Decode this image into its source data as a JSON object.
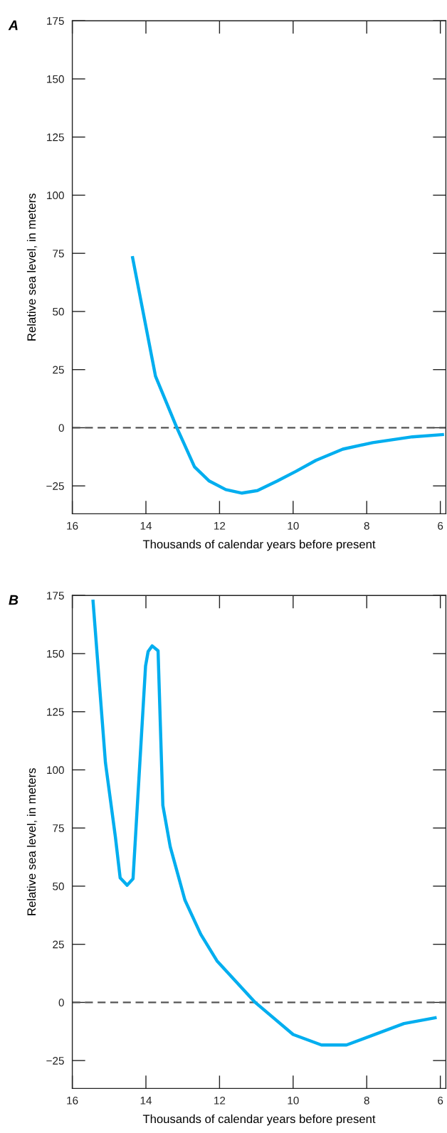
{
  "chart_data": [
    {
      "type": "line",
      "title": "A",
      "xlabel": "Thousands of calendar years before present",
      "ylabel": "Relative sea level, in meters",
      "x": [
        14.37,
        13.74,
        13.16,
        12.68,
        12.28,
        11.83,
        11.39,
        10.97,
        10.43,
        9.93,
        9.38,
        8.65,
        7.84,
        6.76,
        5.9
      ],
      "series": [
        {
          "color": "#00aeef",
          "values": [
            73.8,
            22.2,
            0,
            -16.8,
            -22.9,
            -26.6,
            -28.1,
            -27,
            -22.9,
            -18.8,
            -14,
            -9.2,
            -6.4,
            -3.9,
            -2.9
          ]
        }
      ],
      "xlim": [
        16,
        5.85
      ],
      "xticks": [
        16,
        14,
        12,
        10,
        8,
        6
      ],
      "ylim": [
        -37,
        175
      ],
      "yticks": [
        -25,
        0,
        25,
        50,
        75,
        100,
        125,
        150,
        175
      ],
      "ref_lines": [
        {
          "axis": "y",
          "value": 0,
          "color": "#555555",
          "line_style": "dashed"
        }
      ],
      "grid": false,
      "legend": false,
      "line_style": "solid",
      "marker": "none"
    },
    {
      "type": "line",
      "title": "B",
      "xlabel": "Thousands of calendar years before present",
      "ylabel": "Relative sea level, in meters",
      "x": [
        15.44,
        15.1,
        14.83,
        14.7,
        14.51,
        14.35,
        14.01,
        13.94,
        13.83,
        13.67,
        13.54,
        13.34,
        12.94,
        12.51,
        12.07,
        11.03,
        10.0,
        9.23,
        8.55,
        6.99,
        6.1
      ],
      "series": [
        {
          "color": "#00aeef",
          "values": [
            173.2,
            103.1,
            71.2,
            53.6,
            50.4,
            53.2,
            144.7,
            150.9,
            153.3,
            151.2,
            84.7,
            67,
            44,
            29.3,
            17.9,
            0,
            -13.8,
            -18.3,
            -18.3,
            -9.1,
            -6.5
          ]
        }
      ],
      "xlim": [
        16,
        5.85
      ],
      "xticks": [
        16,
        14,
        12,
        10,
        8,
        6
      ],
      "ylim": [
        -37,
        175
      ],
      "yticks": [
        -25,
        0,
        25,
        50,
        75,
        100,
        125,
        150,
        175
      ],
      "ref_lines": [
        {
          "axis": "y",
          "value": 0,
          "color": "#555555",
          "line_style": "dashed"
        }
      ],
      "grid": false,
      "legend": false,
      "line_style": "solid",
      "marker": "none"
    }
  ]
}
